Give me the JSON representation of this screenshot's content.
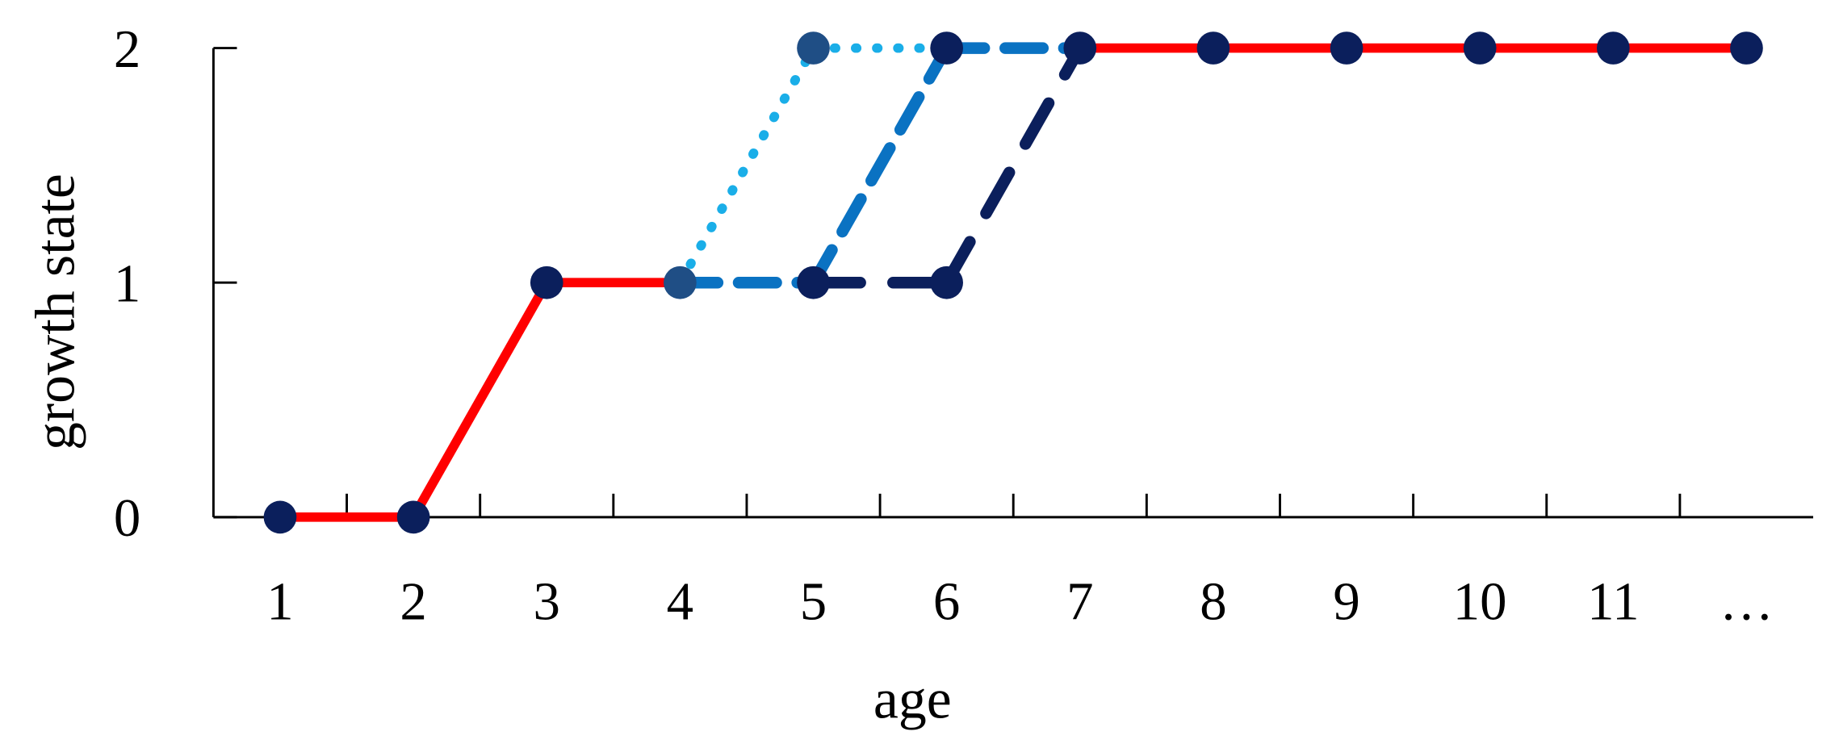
{
  "chart_data": {
    "type": "line",
    "title": "",
    "xlabel": "age",
    "ylabel": "growth state",
    "x_tick_labels": [
      "1",
      "2",
      "3",
      "4",
      "5",
      "6",
      "7",
      "8",
      "9",
      "10",
      "11",
      "…"
    ],
    "y_tick_labels": [
      "0",
      "1",
      "2"
    ],
    "xlim": [
      0.5,
      12.5
    ],
    "ylim": [
      0,
      2
    ],
    "grid": false,
    "legend": "none",
    "series": [
      {
        "style": "solid",
        "color": "#ff0000",
        "marker_color": "#0b1f5c",
        "x": [
          1,
          2,
          3,
          4,
          5,
          6,
          7,
          8,
          9,
          10,
          11,
          12
        ],
        "y": [
          0,
          0,
          1,
          1,
          2,
          2,
          2,
          2,
          2,
          2,
          2,
          2
        ],
        "marker_at": [
          1,
          2,
          3,
          7,
          8,
          9,
          10,
          11,
          12
        ],
        "line_pairs": [
          [
            1,
            2
          ],
          [
            2,
            3
          ],
          [
            3,
            4
          ],
          [
            7,
            8
          ],
          [
            8,
            9
          ],
          [
            9,
            10
          ],
          [
            10,
            11
          ],
          [
            11,
            12
          ]
        ]
      },
      {
        "style": "dotted",
        "color": "#1aaee8",
        "marker_color": "#1f4e85",
        "x": [
          4,
          5,
          6
        ],
        "y": [
          1,
          2,
          2
        ],
        "marker_at": [
          4,
          5
        ],
        "line_pairs": [
          [
            4,
            5
          ],
          [
            5,
            6
          ]
        ]
      },
      {
        "style": "dashed",
        "color": "#0a72c2",
        "marker_color": "#0b1f5c",
        "x": [
          4,
          5,
          6,
          7
        ],
        "y": [
          1,
          1,
          2,
          2
        ],
        "marker_at": [
          5,
          6
        ],
        "line_pairs": [
          [
            4,
            5
          ],
          [
            5,
            6
          ],
          [
            6,
            7
          ]
        ]
      },
      {
        "style": "long-dashed",
        "color": "#0b1f5c",
        "marker_color": "#0b1f5c",
        "x": [
          5,
          6,
          7
        ],
        "y": [
          1,
          1,
          2
        ],
        "marker_at": [
          6
        ],
        "line_pairs": [
          [
            5,
            6
          ],
          [
            6,
            7
          ]
        ]
      }
    ]
  }
}
